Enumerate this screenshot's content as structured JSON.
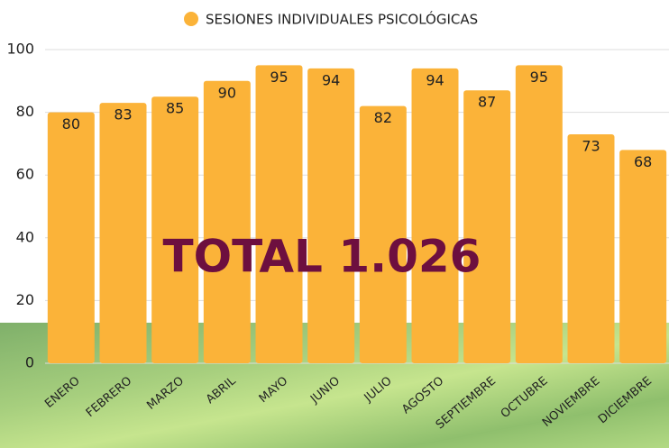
{
  "chart_data": {
    "type": "bar",
    "legend": "SESIONES INDIVIDUALES PSICOLÓGICAS",
    "annotation": "TOTAL 1.026",
    "categories": [
      "ENERO",
      "FEBRERO",
      "MARZO",
      "ABRIL",
      "MAYO",
      "JUNIO",
      "JULIO",
      "AGOSTO",
      "SEPTIEMBRE",
      "OCTUBRE",
      "NOVIEMBRE",
      "DICIEMBRE"
    ],
    "values": [
      80,
      83,
      85,
      90,
      95,
      94,
      82,
      94,
      87,
      95,
      73,
      68
    ],
    "color": "#fbb339",
    "ylim": [
      0,
      100
    ],
    "yticks": [
      0,
      20,
      40,
      60,
      80,
      100
    ],
    "grid": true
  }
}
